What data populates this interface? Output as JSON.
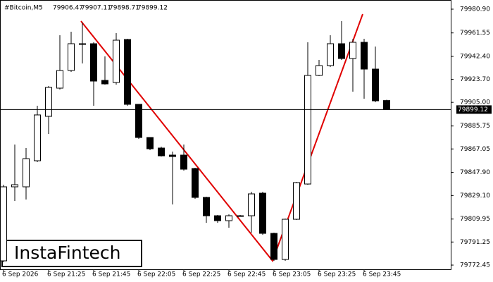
{
  "chart_data": {
    "type": "candlestick",
    "title": "#Bitcoin,M5",
    "logo": "InstaFintech",
    "categories": [
      "6 Sep 2026",
      null,
      null,
      null,
      "6 Sep 21:25",
      null,
      null,
      null,
      "6 Sep 21:45",
      null,
      null,
      null,
      "6 Sep 22:05",
      null,
      null,
      null,
      "6 Sep 22:25",
      null,
      null,
      null,
      "6 Sep 22:45",
      null,
      null,
      null,
      "6 Sep 23:05",
      null,
      null,
      null,
      "6 Sep 23:25",
      null,
      null,
      null,
      "6 Sep 23:45",
      null,
      null
    ],
    "open": [
      79775.91,
      79836.2,
      79836.2,
      79857.44,
      79893.62,
      79916.58,
      79930.94,
      79952.76,
      79952.76,
      79922.9,
      79921.18,
      79956.2,
      79903.38,
      79876.39,
      79867.78,
      79862.04,
      79862.04,
      79851.13,
      79827.58,
      79812.65,
      79808.64,
      79812.65,
      79812.65,
      79831.03,
      79798.3,
      79777.05,
      79809.78,
      79838.49,
      79926.92,
      79934.96,
      79952.76,
      79940.7,
      79953.91,
      79932.09,
      79906.47
    ],
    "high": [
      79837.92,
      79870.65,
      79867.78,
      79902.23,
      79918.31,
      79959.65,
      79962.52,
      79969.99,
      79953.91,
      79942.42,
      79961.37,
      79956.78,
      79903.38,
      79876.39,
      79868.93,
      79864.91,
      79870.65,
      79851.7,
      79828.16,
      79813.23,
      79813.8,
      79813.23,
      79832.18,
      79832.18,
      79798.87,
      79810.36,
      79840.22,
      79953.91,
      79939.55,
      79959.65,
      79971.13,
      79956.78,
      79956.78,
      79950.46,
      79907.11
    ],
    "low": [
      79774.76,
      79824.71,
      79825.86,
      79856.29,
      79879.26,
      79915.44,
      79929.79,
      79936.68,
      79902.23,
      79919.46,
      79919.46,
      79902.23,
      79875.24,
      79866.06,
      79860.89,
      79821.84,
      79849.4,
      79826.44,
      79806.91,
      79806.91,
      79802.89,
      79812.08,
      79798.87,
      79797.15,
      79775.91,
      79775.91,
      79809.21,
      79837.92,
      79926.35,
      79933.81,
      79939.55,
      79913.71,
      79907.97,
      79905.1,
      79898.71
    ],
    "close": [
      79836.2,
      79837.92,
      79859.16,
      79894.77,
      79917.16,
      79930.94,
      79952.76,
      79952.19,
      79922.33,
      79920.03,
      79955.63,
      79903.38,
      79876.39,
      79867.2,
      79861.46,
      79860.89,
      79850.55,
      79827.58,
      79812.65,
      79808.64,
      79812.65,
      79812.5,
      79830.45,
      79798.3,
      79777.05,
      79809.78,
      79839.64,
      79926.92,
      79934.96,
      79952.76,
      79940.7,
      79953.91,
      79932.09,
      79906.25,
      79899.12
    ],
    "up_color": "#ffffff",
    "down_color": "#000000",
    "ylim": [
      79769.02,
      79988.36
    ],
    "yticks": [
      {
        "value": 79980.9,
        "label": "79980.90"
      },
      79961.55,
      {
        "value": 79942.4,
        "label": "79942.40"
      },
      {
        "value": 79923.7,
        "label": "79923.70"
      },
      {
        "value": 79905,
        "label": "79905.00"
      },
      79885.75,
      79867.05,
      {
        "value": 79847.9,
        "label": "79847.90"
      },
      {
        "value": 79829.1,
        "label": "79829.10"
      },
      79809.95,
      79791.25,
      79772.45
    ]
  }
}
